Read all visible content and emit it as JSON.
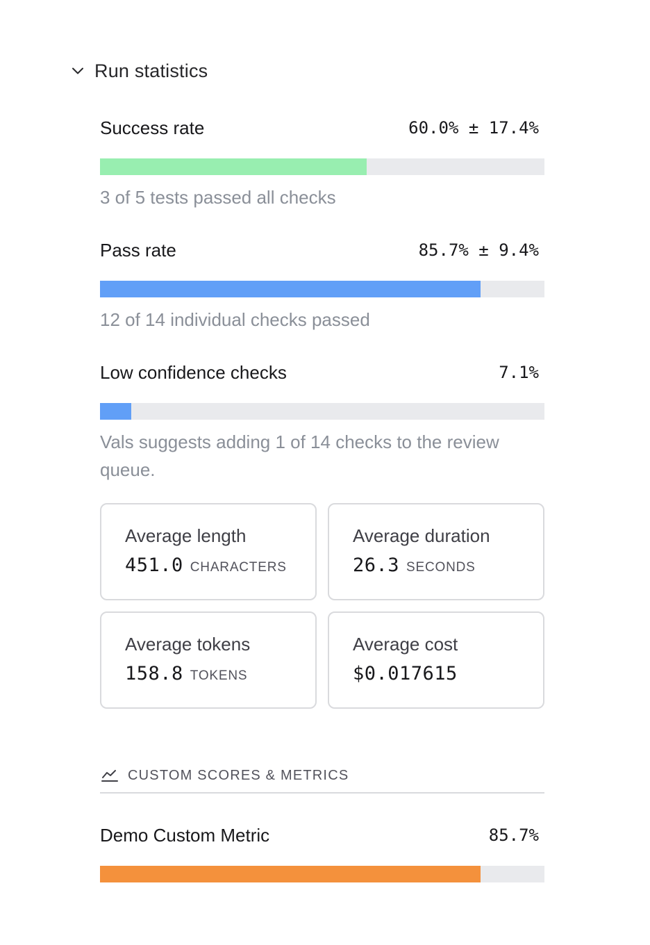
{
  "section": {
    "title": "Run statistics",
    "chevron_icon": "chevron-down-icon"
  },
  "metrics": [
    {
      "label": "Success rate",
      "value": "60.0% ± 17.4%",
      "fraction": 0.6,
      "color": "#98eeb0",
      "description": "3 of 5 tests passed all checks"
    },
    {
      "label": "Pass rate",
      "value": "85.7% ± 9.4%",
      "fraction": 0.857,
      "color": "#619ff7",
      "description": "12 of 14 individual checks passed"
    },
    {
      "label": "Low confidence checks",
      "value": "7.1%",
      "fraction": 0.071,
      "color": "#619ff7",
      "description": "Vals suggests adding 1 of 14 checks to the review queue."
    }
  ],
  "cards": [
    {
      "title": "Average length",
      "value": "451.0",
      "unit": "CHARACTERS"
    },
    {
      "title": "Average duration",
      "value": "26.3",
      "unit": "SECONDS"
    },
    {
      "title": "Average tokens",
      "value": "158.8",
      "unit": "TOKENS"
    },
    {
      "title": "Average cost",
      "value": "$0.017615",
      "unit": ""
    }
  ],
  "custom": {
    "title": "CUSTOM SCORES & METRICS",
    "icon": "line-chart-icon",
    "metrics": [
      {
        "label": "Demo Custom Metric",
        "value": "85.7%",
        "fraction": 0.857,
        "color": "#f4913c"
      }
    ]
  }
}
